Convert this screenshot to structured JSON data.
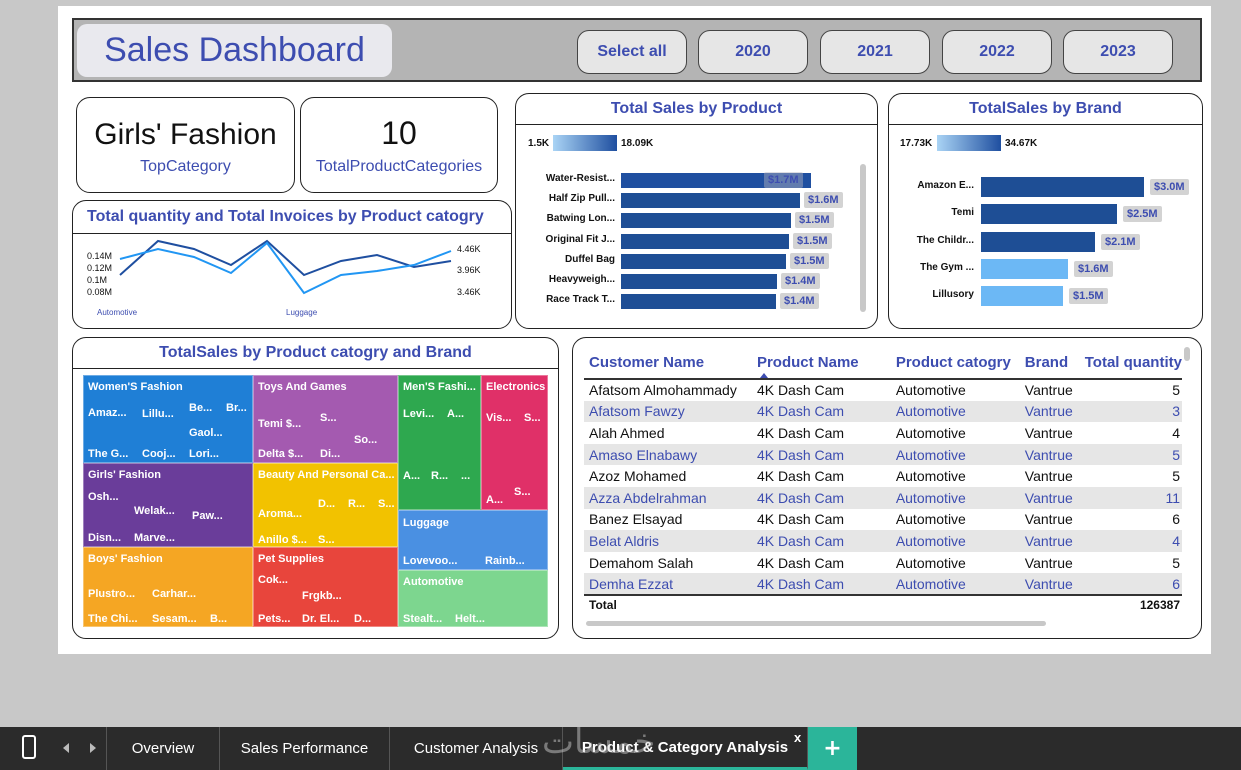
{
  "header": {
    "title": "Sales Dashboard",
    "buttons": [
      "Select all",
      "2020",
      "2021",
      "2022",
      "2023"
    ]
  },
  "kpis": {
    "top_category_value": "Girls' Fashion",
    "top_category_label": "TopCategory",
    "categories_value": "10",
    "categories_label": "TotalProductCategories"
  },
  "line_chart": {
    "title": "Total quantity and Total Invoices by Product catogry",
    "left_ticks": [
      "0.14M",
      "0.12M",
      "0.1M",
      "0.08M"
    ],
    "right_ticks": [
      "4.46K",
      "3.96K",
      "3.46K"
    ],
    "x_ticks": [
      "Automotive",
      "Luggage"
    ]
  },
  "product_chart": {
    "title": "Total Sales by Product",
    "legend_min": "1.5K",
    "legend_max": "18.09K",
    "items": [
      {
        "label": "Water-Resist...",
        "value": "$1.7M",
        "amount": 1.7
      },
      {
        "label": "Half Zip Pull...",
        "value": "$1.6M",
        "amount": 1.6
      },
      {
        "label": "Batwing Lon...",
        "value": "$1.5M",
        "amount": 1.52
      },
      {
        "label": "Original Fit J...",
        "value": "$1.5M",
        "amount": 1.5
      },
      {
        "label": "Duffel Bag",
        "value": "$1.5M",
        "amount": 1.48
      },
      {
        "label": "Heavyweigh...",
        "value": "$1.4M",
        "amount": 1.4
      },
      {
        "label": "Race Track T...",
        "value": "$1.4M",
        "amount": 1.39
      }
    ]
  },
  "brand_chart": {
    "title": "TotalSales by Brand",
    "legend_min": "17.73K",
    "legend_max": "34.67K",
    "items": [
      {
        "label": "Amazon E...",
        "value": "$3.0M",
        "amount": 3.0
      },
      {
        "label": "Temi",
        "value": "$2.5M",
        "amount": 2.5
      },
      {
        "label": "The Childr...",
        "value": "$2.1M",
        "amount": 2.1
      },
      {
        "label": "The Gym ...",
        "value": "$1.6M",
        "amount": 1.6
      },
      {
        "label": "Lillusory",
        "value": "$1.5M",
        "amount": 1.5
      }
    ]
  },
  "treemap": {
    "title": "TotalSales by Product catogry and Brand",
    "categories": [
      {
        "name": "Women'S Fashion",
        "color": "#1f7fd6",
        "brands": [
          "Amaz...",
          "Lillu...",
          "Be...",
          "Br...",
          "Gaol...",
          "The G...",
          "Cooj...",
          "Lori..."
        ]
      },
      {
        "name": "Toys And Games",
        "color": "#a45ab0",
        "brands": [
          "Temi $...",
          "S...",
          "So...",
          "Delta $...",
          "Di..."
        ]
      },
      {
        "name": "Men'S Fashi...",
        "color": "#2ea84f",
        "brands": [
          "Levi...",
          "A...",
          "A...",
          "R...",
          "..."
        ]
      },
      {
        "name": "Electronics",
        "color": "#e03068",
        "brands": [
          "Vis...",
          "S...",
          "A...",
          "S..."
        ]
      },
      {
        "name": "Girls' Fashion",
        "color": "#6a3d9a",
        "brands": [
          "Osh...",
          "Welak...",
          "Paw...",
          "Disn...",
          "Marve..."
        ]
      },
      {
        "name": "Beauty And Personal Ca...",
        "color": "#f2c200",
        "brands": [
          "D...",
          "R...",
          "Aroma...",
          "S...",
          "Anillo $...",
          "S..."
        ]
      },
      {
        "name": "Luggage",
        "color": "#4a90e2",
        "brands": [
          "Lovevoo...",
          "Rainb..."
        ]
      },
      {
        "name": "Boys' Fashion",
        "color": "#f5a623",
        "brands": [
          "Plustro...",
          "Carhar...",
          "The Chi...",
          "Sesam...",
          "B..."
        ]
      },
      {
        "name": "Pet Supplies",
        "color": "#e8453c",
        "brands": [
          "Cok...",
          "Frgkb...",
          "Pets...",
          "Dr. El...",
          "D..."
        ]
      },
      {
        "name": "Automotive",
        "color": "#7dd68f",
        "brands": [
          "Stealt...",
          "Helt..."
        ]
      }
    ]
  },
  "table": {
    "columns": [
      "Customer Name",
      "Product Name",
      "Product catogry",
      "Brand",
      "Total quantity"
    ],
    "rows": [
      [
        "Afatsom Almohammady",
        "4K Dash Cam",
        "Automotive",
        "Vantrue",
        "5"
      ],
      [
        "Afatsom Fawzy",
        "4K Dash Cam",
        "Automotive",
        "Vantrue",
        "3"
      ],
      [
        "Alah Ahmed",
        "4K Dash Cam",
        "Automotive",
        "Vantrue",
        "4"
      ],
      [
        "Amaso Elnabawy",
        "4K Dash Cam",
        "Automotive",
        "Vantrue",
        "5"
      ],
      [
        "Azoz Mohamed",
        "4K Dash Cam",
        "Automotive",
        "Vantrue",
        "5"
      ],
      [
        "Azza Abdelrahman",
        "4K Dash Cam",
        "Automotive",
        "Vantrue",
        "11"
      ],
      [
        "Banez Elsayad",
        "4K Dash Cam",
        "Automotive",
        "Vantrue",
        "6"
      ],
      [
        "Belat Aldris",
        "4K Dash Cam",
        "Automotive",
        "Vantrue",
        "4"
      ],
      [
        "Demahom Salah",
        "4K Dash Cam",
        "Automotive",
        "Vantrue",
        "5"
      ],
      [
        "Demha Ezzat",
        "4K Dash Cam",
        "Automotive",
        "Vantrue",
        "6"
      ]
    ],
    "total_label": "Total",
    "total_value": "126387"
  },
  "tabs": [
    "Overview",
    "Sales Performance",
    "Customer Analysis",
    "Product & Category Analysis"
  ],
  "active_tab": "Product & Category Analysis",
  "watermark": "خمسات"
}
